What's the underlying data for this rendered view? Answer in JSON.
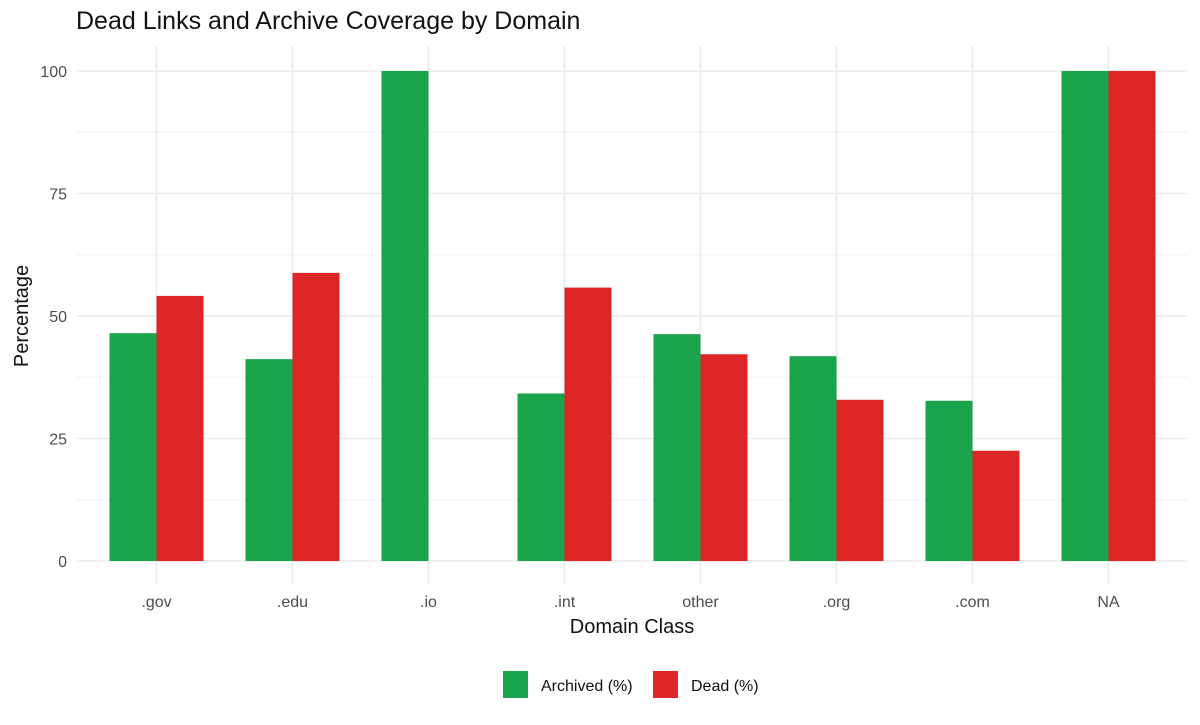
{
  "chart_data": {
    "type": "bar",
    "title": "Dead Links and Archive Coverage by Domain",
    "xlabel": "Domain Class",
    "ylabel": "Percentage",
    "categories": [
      ".gov",
      ".edu",
      ".io",
      ".int",
      "other",
      ".org",
      ".com",
      "NA"
    ],
    "series": [
      {
        "name": "Archived (%)",
        "color": "#1aa54d",
        "values": [
          46.5,
          41.2,
          100,
          34.2,
          46.3,
          41.8,
          32.7,
          100
        ]
      },
      {
        "name": "Dead (%)",
        "color": "#de2627",
        "values": [
          54.1,
          58.8,
          0,
          55.8,
          42.2,
          32.9,
          22.5,
          100
        ]
      }
    ],
    "ylim": [
      0,
      100
    ],
    "yticks": [
      0,
      25,
      50,
      75,
      100
    ],
    "grid": true,
    "legend_position": "bottom"
  }
}
